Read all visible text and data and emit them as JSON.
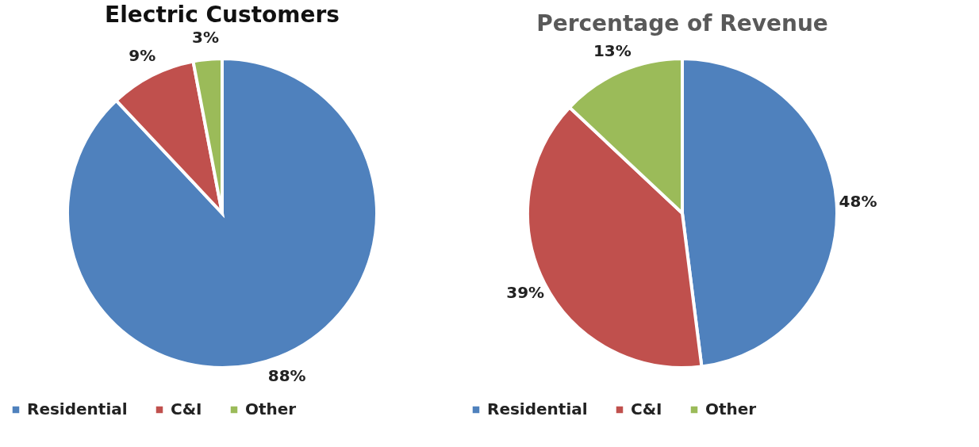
{
  "chart_data": [
    {
      "type": "pie",
      "title": "Electric Customers",
      "categories": [
        "Residential",
        "C&I",
        "Other"
      ],
      "values": [
        88,
        9,
        3
      ],
      "colors": [
        "#4f81bd",
        "#c0504d",
        "#9bbb59"
      ],
      "value_labels": [
        "88%",
        "9%",
        "3%"
      ],
      "legend": "bottom"
    },
    {
      "type": "pie",
      "title": "Percentage of Revenue",
      "categories": [
        "Residential",
        "C&I",
        "Other"
      ],
      "values": [
        48,
        39,
        13
      ],
      "colors": [
        "#4f81bd",
        "#c0504d",
        "#9bbb59"
      ],
      "value_labels": [
        "48%",
        "39%",
        "13%"
      ],
      "legend": "bottom"
    }
  ]
}
